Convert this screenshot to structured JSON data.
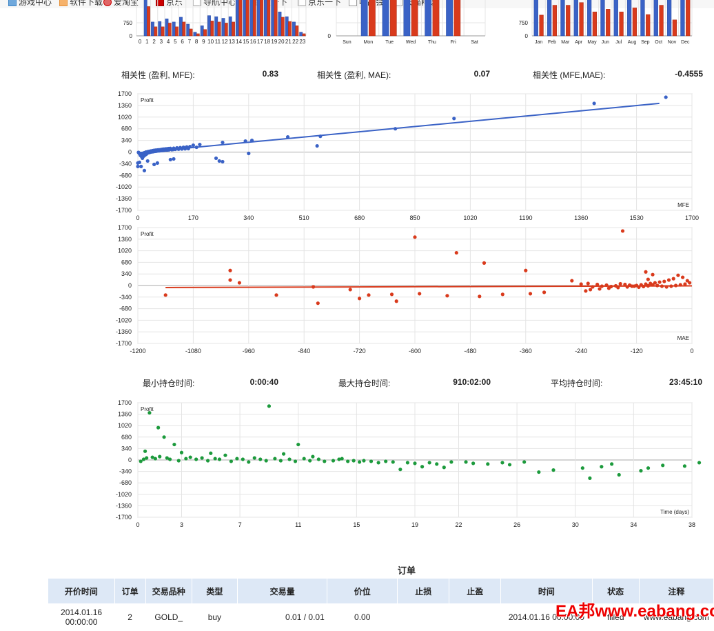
{
  "bookmarks": [
    {
      "label": "游戏中心",
      "icon": "game-icon"
    },
    {
      "label": "软件下载",
      "icon": "software-icon"
    },
    {
      "label": "爱淘宝",
      "icon": "taobao-icon"
    },
    {
      "label": "京东",
      "icon": "jd-icon"
    },
    {
      "label": "导航中心",
      "icon": "page-icon"
    },
    {
      "label": "百度一下",
      "icon": "page-icon"
    },
    {
      "label": "京东一下",
      "icon": "page-icon"
    },
    {
      "label": "唯品会",
      "icon": "page-icon"
    },
    {
      "label": "天猫精选",
      "icon": "page-icon"
    }
  ],
  "correlation": [
    {
      "label": "相关性 (盈利, MFE):",
      "value": "0.83"
    },
    {
      "label": "相关性 (盈利, MAE):",
      "value": "0.07"
    },
    {
      "label": "相关性 (MFE,MAE):",
      "value": "-0.4555"
    }
  ],
  "holding": [
    {
      "label": "最小持仓时间:",
      "value": "0:00:40"
    },
    {
      "label": "最大持仓时间:",
      "value": "910:02:00"
    },
    {
      "label": "平均持仓时间:",
      "value": "23:45:10"
    }
  ],
  "orders": {
    "title": "订单",
    "headers": [
      "开价时间",
      "订单",
      "交易品种",
      "类型",
      "交易量",
      "价位",
      "止损",
      "止盈",
      "时间",
      "状态",
      "注释"
    ],
    "rows": [
      [
        "2014.01.16 00:00:00",
        "2",
        "GOLD_",
        "buy",
        "0.01 / 0.01",
        "0.00",
        "",
        "",
        "2014.01.16 00:00:00",
        "filled",
        "www.eabang.com"
      ]
    ]
  },
  "watermark": "EA邦www.eabang.com",
  "colors": {
    "blue": "#3a62c6",
    "red": "#d93a1c",
    "green": "#1c9a3c",
    "grid": "#e4e4e4"
  },
  "chart_data": [
    {
      "type": "bar",
      "id": "hours",
      "categories": [
        "0",
        "1",
        "2",
        "3",
        "4",
        "5",
        "6",
        "7",
        "8",
        "9",
        "10",
        "11",
        "12",
        "13",
        "14",
        "15",
        "16",
        "17",
        "18",
        "19",
        "20",
        "21",
        "22",
        "23"
      ],
      "ytick": "750",
      "yzero": "0",
      "series": [
        {
          "values": [
            0,
            1500,
            520,
            540,
            640,
            520,
            700,
            440,
            140,
            380,
            760,
            720,
            660,
            720,
            1500,
            1500,
            1500,
            1500,
            1500,
            1500,
            900,
            720,
            520,
            140
          ]
        },
        {
          "values": [
            0,
            1100,
            340,
            340,
            480,
            340,
            520,
            260,
            80,
            240,
            560,
            520,
            480,
            520,
            1500,
            1500,
            1500,
            1500,
            1500,
            1500,
            700,
            540,
            380,
            80
          ]
        }
      ]
    },
    {
      "type": "bar",
      "id": "weekdays",
      "categories": [
        "Sun",
        "Mon",
        "Tue",
        "Wed",
        "Thu",
        "Fri",
        "Sat"
      ],
      "yzero": "0",
      "series": [
        {
          "values": [
            0,
            1500,
            1500,
            1500,
            1500,
            1500,
            0
          ]
        },
        {
          "values": [
            0,
            1450,
            1400,
            1500,
            1500,
            1500,
            0
          ]
        }
      ]
    },
    {
      "type": "bar",
      "id": "months",
      "categories": [
        "Jan",
        "Feb",
        "Mar",
        "Apr",
        "May",
        "Jun",
        "Jul",
        "Aug",
        "Sep",
        "Oct",
        "Nov",
        "Dec"
      ],
      "ytick": "750",
      "yzero": "0",
      "series": [
        {
          "values": [
            1500,
            1500,
            1500,
            1500,
            1500,
            1500,
            1500,
            1500,
            1500,
            1500,
            1500,
            1500
          ]
        },
        {
          "values": [
            780,
            1150,
            1150,
            1250,
            900,
            1000,
            900,
            1050,
            800,
            1150,
            600,
            1500
          ]
        }
      ]
    },
    {
      "type": "scatter",
      "id": "mfe",
      "ylabel": "Profit",
      "xlabel": "MFE",
      "color": "blue",
      "xticks": [
        0,
        170,
        340,
        510,
        680,
        850,
        1020,
        1190,
        1360,
        1530,
        1700
      ],
      "yticks": [
        1700,
        1360,
        1020,
        680,
        340,
        0,
        -340,
        -680,
        -1020,
        -1360,
        -1700
      ],
      "trend": [
        [
          0,
          -20
        ],
        [
          1600,
          1420
        ]
      ],
      "points": [
        [
          1620,
          1600
        ],
        [
          1400,
          1420
        ],
        [
          970,
          980
        ],
        [
          790,
          680
        ],
        [
          560,
          460
        ],
        [
          550,
          180
        ],
        [
          460,
          440
        ],
        [
          350,
          340
        ],
        [
          330,
          320
        ],
        [
          340,
          -40
        ],
        [
          260,
          280
        ],
        [
          260,
          -280
        ],
        [
          250,
          -260
        ],
        [
          240,
          -180
        ],
        [
          190,
          220
        ],
        [
          180,
          140
        ],
        [
          170,
          200
        ],
        [
          110,
          -200
        ],
        [
          100,
          -220
        ],
        [
          60,
          -320
        ],
        [
          50,
          -360
        ],
        [
          30,
          -260
        ],
        [
          20,
          -540
        ],
        [
          10,
          -420
        ],
        [
          5,
          -300
        ],
        [
          0,
          -320
        ],
        [
          0,
          -420
        ],
        [
          10,
          -80
        ],
        [
          15,
          -40
        ],
        [
          20,
          -20
        ],
        [
          25,
          0
        ],
        [
          30,
          10
        ],
        [
          35,
          20
        ],
        [
          40,
          30
        ],
        [
          45,
          40
        ],
        [
          50,
          50
        ],
        [
          55,
          55
        ],
        [
          60,
          60
        ],
        [
          65,
          65
        ],
        [
          70,
          70
        ],
        [
          75,
          80
        ],
        [
          80,
          85
        ],
        [
          85,
          90
        ],
        [
          90,
          95
        ],
        [
          95,
          100
        ],
        [
          100,
          105
        ],
        [
          110,
          110
        ],
        [
          120,
          120
        ],
        [
          130,
          130
        ],
        [
          140,
          140
        ],
        [
          150,
          150
        ],
        [
          160,
          160
        ],
        [
          2,
          -10
        ],
        [
          4,
          -30
        ],
        [
          6,
          -60
        ],
        [
          8,
          -100
        ],
        [
          12,
          -140
        ],
        [
          14,
          -180
        ],
        [
          18,
          -120
        ],
        [
          22,
          -90
        ],
        [
          26,
          -60
        ],
        [
          28,
          -40
        ],
        [
          32,
          -20
        ],
        [
          36,
          -10
        ],
        [
          38,
          0
        ],
        [
          42,
          5
        ],
        [
          46,
          10
        ],
        [
          48,
          15
        ],
        [
          52,
          20
        ],
        [
          56,
          25
        ],
        [
          58,
          30
        ],
        [
          62,
          35
        ],
        [
          66,
          38
        ],
        [
          68,
          40
        ],
        [
          72,
          45
        ],
        [
          76,
          48
        ],
        [
          78,
          50
        ],
        [
          82,
          55
        ],
        [
          88,
          60
        ],
        [
          92,
          62
        ],
        [
          96,
          66
        ],
        [
          104,
          70
        ],
        [
          108,
          74
        ],
        [
          115,
          80
        ],
        [
          125,
          85
        ],
        [
          135,
          90
        ],
        [
          145,
          95
        ],
        [
          155,
          100
        ]
      ]
    },
    {
      "type": "scatter",
      "id": "mae",
      "ylabel": "Profit",
      "xlabel": "MAE",
      "color": "red",
      "xticks": [
        -1200,
        -1080,
        -960,
        -840,
        -720,
        -600,
        -480,
        -360,
        -240,
        -120,
        0
      ],
      "yticks": [
        1700,
        1360,
        1020,
        680,
        340,
        0,
        -340,
        -680,
        -1020,
        -1360,
        -1700
      ],
      "trend": [
        [
          -1140,
          -60
        ],
        [
          0,
          -10
        ]
      ],
      "points": [
        [
          -1140,
          -280
        ],
        [
          -1000,
          440
        ],
        [
          -1000,
          160
        ],
        [
          -980,
          80
        ],
        [
          -900,
          -280
        ],
        [
          -810,
          -520
        ],
        [
          -820,
          -40
        ],
        [
          -740,
          -120
        ],
        [
          -720,
          -380
        ],
        [
          -700,
          -280
        ],
        [
          -650,
          -260
        ],
        [
          -640,
          -460
        ],
        [
          -600,
          1420
        ],
        [
          -590,
          -240
        ],
        [
          -530,
          -300
        ],
        [
          -510,
          960
        ],
        [
          -460,
          -320
        ],
        [
          -450,
          660
        ],
        [
          -410,
          -260
        ],
        [
          -360,
          440
        ],
        [
          -350,
          -240
        ],
        [
          -320,
          -200
        ],
        [
          -260,
          140
        ],
        [
          -240,
          40
        ],
        [
          -230,
          -160
        ],
        [
          -220,
          -120
        ],
        [
          -200,
          -100
        ],
        [
          -180,
          -80
        ],
        [
          -160,
          -60
        ],
        [
          -150,
          1600
        ],
        [
          -140,
          -40
        ],
        [
          -130,
          -20
        ],
        [
          -120,
          0
        ],
        [
          -110,
          20
        ],
        [
          -100,
          40
        ],
        [
          -90,
          60
        ],
        [
          -80,
          80
        ],
        [
          -70,
          100
        ],
        [
          -60,
          120
        ],
        [
          -50,
          160
        ],
        [
          -40,
          200
        ],
        [
          -30,
          300
        ],
        [
          -20,
          240
        ],
        [
          -10,
          140
        ],
        [
          -5,
          80
        ],
        [
          -15,
          40
        ],
        [
          -25,
          20
        ],
        [
          -35,
          0
        ],
        [
          -45,
          -20
        ],
        [
          -55,
          -40
        ],
        [
          -65,
          -20
        ],
        [
          -75,
          0
        ],
        [
          -85,
          20
        ],
        [
          -95,
          -10
        ],
        [
          -105,
          -30
        ],
        [
          -115,
          -50
        ],
        [
          -125,
          -20
        ],
        [
          -135,
          10
        ],
        [
          -145,
          30
        ],
        [
          -155,
          50
        ],
        [
          -165,
          -10
        ],
        [
          -175,
          -30
        ],
        [
          -185,
          10
        ],
        [
          -195,
          -20
        ],
        [
          -205,
          30
        ],
        [
          -215,
          -40
        ],
        [
          -225,
          60
        ],
        [
          -85,
          320
        ],
        [
          -95,
          180
        ],
        [
          -100,
          400
        ]
      ]
    },
    {
      "type": "scatter",
      "id": "time",
      "ylabel": "Profit",
      "xlabel": "Time (days)",
      "color": "green",
      "xticks": [
        0,
        3,
        7,
        11,
        15,
        19,
        22,
        26,
        30,
        34,
        38
      ],
      "yticks": [
        1700,
        1360,
        1020,
        680,
        340,
        0,
        -340,
        -680,
        -1020,
        -1360,
        -1700
      ],
      "points": [
        [
          0.8,
          1400
        ],
        [
          1.4,
          960
        ],
        [
          1.8,
          680
        ],
        [
          2.5,
          460
        ],
        [
          9.0,
          1600
        ],
        [
          11.0,
          460
        ],
        [
          0.5,
          260
        ],
        [
          3.0,
          220
        ],
        [
          5.0,
          200
        ],
        [
          6.0,
          140
        ],
        [
          10.0,
          180
        ],
        [
          12.0,
          100
        ],
        [
          14.0,
          40
        ],
        [
          15.5,
          -20
        ],
        [
          17.0,
          -40
        ],
        [
          18.0,
          -280
        ],
        [
          19.5,
          -200
        ],
        [
          20.5,
          -120
        ],
        [
          21.0,
          -220
        ],
        [
          22.5,
          -60
        ],
        [
          24.0,
          -120
        ],
        [
          25.5,
          -140
        ],
        [
          26.5,
          -60
        ],
        [
          27.5,
          -360
        ],
        [
          28.5,
          -300
        ],
        [
          30.5,
          -240
        ],
        [
          31.0,
          -540
        ],
        [
          31.8,
          -200
        ],
        [
          32.5,
          -120
        ],
        [
          33.0,
          -440
        ],
        [
          34.5,
          -320
        ],
        [
          35.0,
          -240
        ],
        [
          36.0,
          -160
        ],
        [
          37.5,
          -180
        ],
        [
          38.5,
          -80
        ],
        [
          0.2,
          -40
        ],
        [
          0.4,
          20
        ],
        [
          0.6,
          60
        ],
        [
          1.0,
          80
        ],
        [
          1.2,
          40
        ],
        [
          1.5,
          100
        ],
        [
          2.0,
          60
        ],
        [
          2.2,
          20
        ],
        [
          2.8,
          -20
        ],
        [
          3.3,
          40
        ],
        [
          3.6,
          80
        ],
        [
          4.0,
          20
        ],
        [
          4.4,
          60
        ],
        [
          4.8,
          -20
        ],
        [
          5.3,
          40
        ],
        [
          5.6,
          20
        ],
        [
          6.4,
          -40
        ],
        [
          6.8,
          40
        ],
        [
          7.2,
          20
        ],
        [
          7.6,
          -60
        ],
        [
          8.0,
          60
        ],
        [
          8.4,
          20
        ],
        [
          8.8,
          -20
        ],
        [
          9.4,
          40
        ],
        [
          9.8,
          -20
        ],
        [
          10.4,
          20
        ],
        [
          10.8,
          -40
        ],
        [
          11.4,
          40
        ],
        [
          11.8,
          -20
        ],
        [
          12.4,
          20
        ],
        [
          12.8,
          -40
        ],
        [
          13.4,
          -20
        ],
        [
          13.8,
          20
        ],
        [
          14.4,
          -40
        ],
        [
          14.8,
          -20
        ],
        [
          15.2,
          -60
        ],
        [
          16.0,
          -40
        ],
        [
          16.5,
          -80
        ],
        [
          17.5,
          -60
        ],
        [
          18.5,
          -80
        ],
        [
          19.0,
          -100
        ],
        [
          20.0,
          -80
        ],
        [
          21.5,
          -60
        ],
        [
          23.0,
          -100
        ],
        [
          25.0,
          -80
        ]
      ]
    }
  ]
}
